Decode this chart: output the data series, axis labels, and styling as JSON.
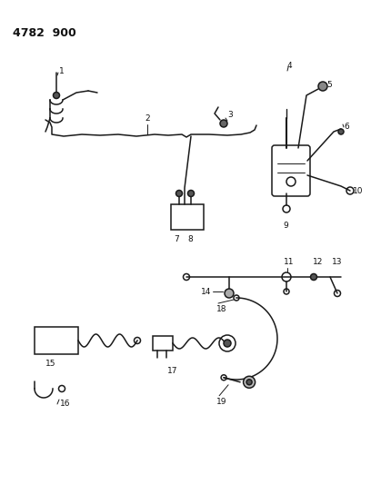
{
  "title": "4782  900",
  "bg_color": "#ffffff",
  "line_color": "#1a1a1a",
  "label_color": "#111111",
  "figsize": [
    4.08,
    5.33
  ],
  "dpi": 100,
  "lw": 1.1
}
